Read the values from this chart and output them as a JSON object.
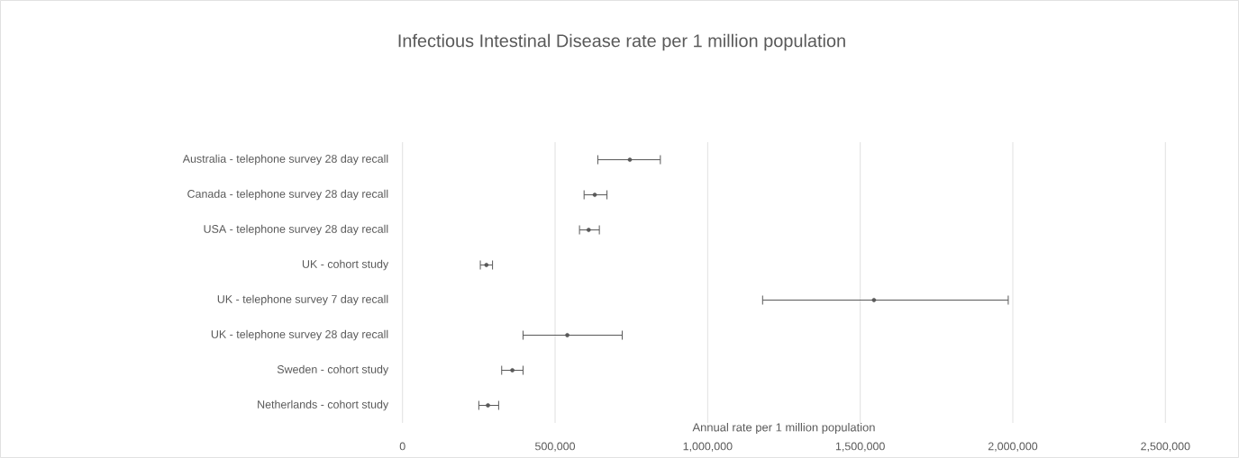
{
  "chart_data": {
    "type": "scatter",
    "orientation": "horizontal",
    "title": "Infectious Intestinal Disease rate per 1 million population",
    "xlabel": "Annual rate per 1 million population",
    "categories": [
      "Australia - telephone survey 28 day recall",
      "Canada - telephone survey 28 day recall",
      "USA - telephone survey 28 day recall",
      "UK - cohort study",
      "UK - telephone survey 7 day recall",
      "UK - telephone survey 28 day recall",
      "Sweden - cohort study",
      "Netherlands - cohort study"
    ],
    "values": [
      745000,
      630000,
      610000,
      275000,
      1545000,
      540000,
      360000,
      280000
    ],
    "errors": [
      [
        640000,
        845000
      ],
      [
        595000,
        670000
      ],
      [
        580000,
        645000
      ],
      [
        255000,
        295000
      ],
      [
        1180000,
        1985000
      ],
      [
        395000,
        720000
      ],
      [
        325000,
        395000
      ],
      [
        250000,
        315000
      ]
    ],
    "color": "#595959",
    "xlim": [
      0,
      2500000
    ],
    "xticks": [
      0,
      {
        "value": 500000,
        "label": "500,000"
      },
      {
        "value": 1000000,
        "label": "1,000,000"
      },
      {
        "value": 1500000,
        "label": "1,500,000"
      },
      {
        "value": 2000000,
        "label": "2,000,000"
      },
      {
        "value": 2500000,
        "label": "2,500,000"
      }
    ],
    "grid": "x"
  }
}
